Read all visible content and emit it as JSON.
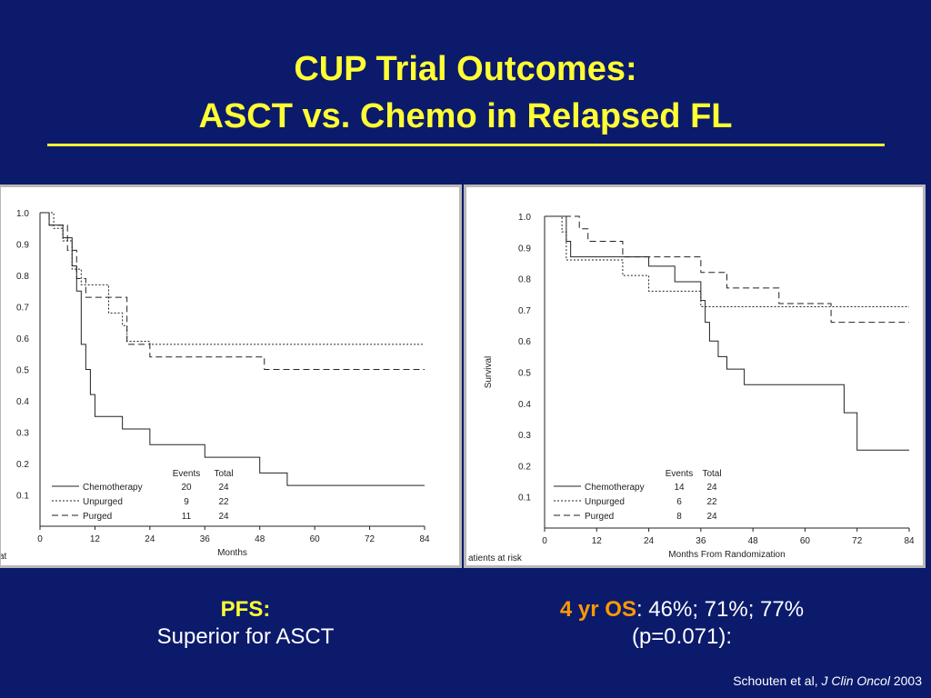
{
  "slide": {
    "title_line1": "CUP Trial Outcomes:",
    "title_line2": "ASCT vs. Chemo in Relapsed FL",
    "left_caption": {
      "heading": "PFS:",
      "text": "Superior for ASCT"
    },
    "right_caption": {
      "heading": "4 yr OS",
      "text": ": 46%; 71%; 77%",
      "line2": "(p=0.071):"
    },
    "citation": {
      "authors": "Schouten et al, ",
      "journal": "J Clin Oncol",
      "year": " 2003"
    },
    "colors": {
      "background": "#0b1a6b",
      "title": "#ffff33",
      "highlight": "#ff9900",
      "text": "#ffffff"
    }
  },
  "chart_data": [
    {
      "type": "line",
      "title": "",
      "xlabel": "Months",
      "ylabel": "",
      "left_label_fragment": "at",
      "xlim": [
        0,
        84
      ],
      "ylim": [
        0,
        1.0
      ],
      "xticks": [
        0,
        12,
        24,
        36,
        48,
        60,
        72,
        84
      ],
      "yticks": [
        0.1,
        0.2,
        0.3,
        0.4,
        0.5,
        0.6,
        0.7,
        0.8,
        0.9,
        1.0
      ],
      "ytick_labels": [
        "0.1",
        "0.2",
        "0.3",
        "0.4",
        "0.5",
        "0.6",
        "0.7",
        "0.8",
        "0.9",
        "1.0"
      ],
      "legend_headers": {
        "events": "Events",
        "total": "Total"
      },
      "series": [
        {
          "name": "Chemotherapy",
          "style": "solid",
          "events": "20",
          "total": "24",
          "x": [
            0,
            2,
            5,
            7,
            8,
            9,
            10,
            11,
            12,
            13,
            15,
            18,
            24,
            30,
            36,
            42,
            48,
            54,
            60,
            72,
            84
          ],
          "y": [
            1.0,
            0.96,
            0.92,
            0.83,
            0.75,
            0.58,
            0.5,
            0.42,
            0.35,
            0.35,
            0.35,
            0.31,
            0.26,
            0.26,
            0.22,
            0.22,
            0.17,
            0.13,
            0.13,
            0.13,
            0.13
          ]
        },
        {
          "name": "Unpurged",
          "style": "dotted",
          "events": "9",
          "total": "22",
          "x": [
            0,
            3,
            5,
            7,
            9,
            12,
            15,
            18,
            19,
            24,
            36,
            48,
            60,
            72,
            84
          ],
          "y": [
            1.0,
            0.95,
            0.91,
            0.82,
            0.77,
            0.77,
            0.68,
            0.64,
            0.59,
            0.58,
            0.58,
            0.58,
            0.58,
            0.58,
            0.58
          ]
        },
        {
          "name": "Purged",
          "style": "dashed",
          "events": "11",
          "total": "24",
          "x": [
            0,
            2,
            6,
            8,
            10,
            12,
            18,
            19,
            24,
            36,
            48,
            49,
            60,
            72,
            84
          ],
          "y": [
            1.0,
            0.96,
            0.88,
            0.79,
            0.73,
            0.73,
            0.73,
            0.58,
            0.54,
            0.54,
            0.54,
            0.5,
            0.5,
            0.5,
            0.5
          ]
        }
      ]
    },
    {
      "type": "line",
      "title": "",
      "xlabel": "Months From Randomization",
      "ylabel": "Survival",
      "left_label_fragment": "atients at risk",
      "xlim": [
        0,
        84
      ],
      "ylim": [
        0,
        1.0
      ],
      "xticks": [
        0,
        12,
        24,
        36,
        48,
        60,
        72,
        84
      ],
      "yticks": [
        0.1,
        0.2,
        0.3,
        0.4,
        0.5,
        0.6,
        0.7,
        0.8,
        0.9,
        1.0
      ],
      "ytick_labels": [
        "0.1",
        "0.2",
        "0.3",
        "0.4",
        "0.5",
        "0.6",
        "0.7",
        "0.8",
        "0.9",
        "1.0"
      ],
      "legend_headers": {
        "events": "Events",
        "total": "Total"
      },
      "series": [
        {
          "name": "Chemotherapy",
          "style": "solid",
          "events": "14",
          "total": "24",
          "x": [
            0,
            5,
            6,
            12,
            18,
            24,
            30,
            34,
            36,
            37,
            38,
            40,
            42,
            44,
            46,
            48,
            60,
            66,
            69,
            72,
            84
          ],
          "y": [
            1.0,
            0.92,
            0.87,
            0.87,
            0.87,
            0.84,
            0.79,
            0.79,
            0.73,
            0.66,
            0.6,
            0.55,
            0.51,
            0.51,
            0.46,
            0.46,
            0.46,
            0.46,
            0.37,
            0.25,
            0.25
          ]
        },
        {
          "name": "Unpurged",
          "style": "dotted",
          "events": "6",
          "total": "22",
          "x": [
            0,
            4,
            5,
            12,
            18,
            24,
            30,
            36,
            48,
            60,
            72,
            84
          ],
          "y": [
            1.0,
            0.95,
            0.86,
            0.86,
            0.81,
            0.76,
            0.76,
            0.71,
            0.71,
            0.71,
            0.71,
            0.71
          ]
        },
        {
          "name": "Purged",
          "style": "dashed",
          "events": "8",
          "total": "24",
          "x": [
            0,
            8,
            10,
            12,
            18,
            24,
            30,
            36,
            42,
            48,
            54,
            60,
            66,
            72,
            84
          ],
          "y": [
            1.0,
            0.96,
            0.92,
            0.92,
            0.87,
            0.87,
            0.87,
            0.82,
            0.77,
            0.77,
            0.72,
            0.72,
            0.66,
            0.66,
            0.66
          ]
        }
      ]
    }
  ]
}
